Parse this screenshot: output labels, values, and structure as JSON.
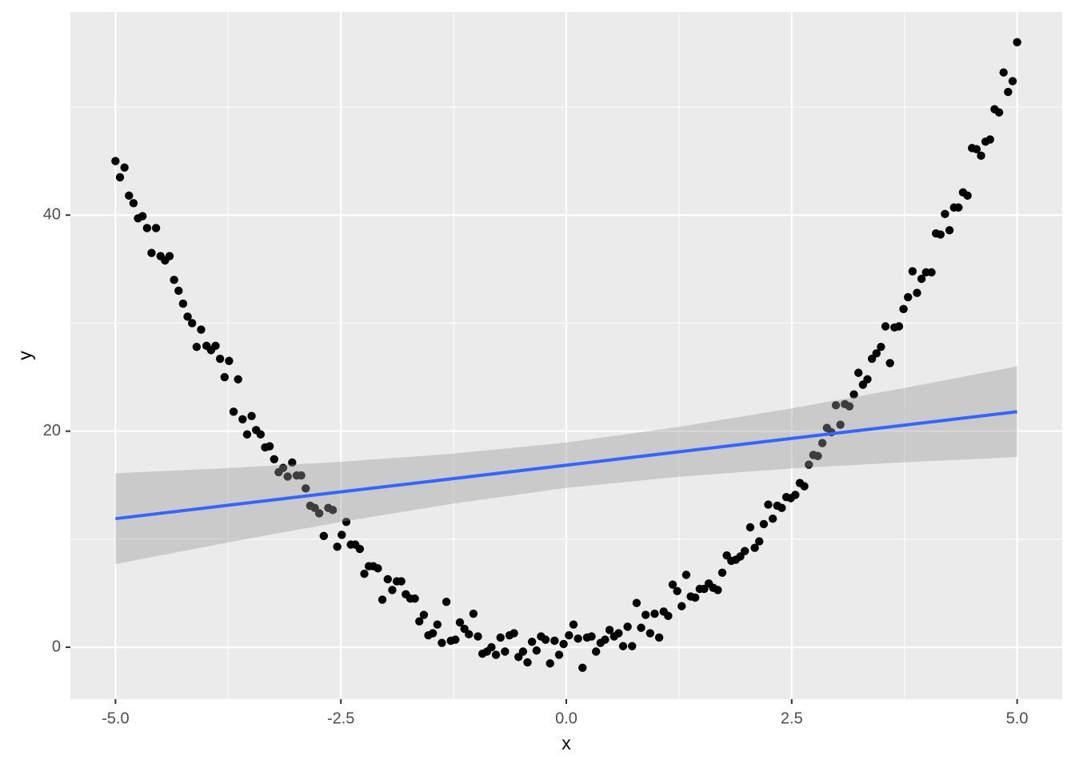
{
  "chart_data": {
    "type": "scatter",
    "x_label": "x",
    "y_label": "y",
    "color": "#000000",
    "panel_color": "#ebebeb",
    "grid": true,
    "xlim": [
      -5.5,
      5.5
    ],
    "ylim": [
      -4.8,
      58.8
    ],
    "xticks": [
      {
        "value": -5,
        "label": "-5.0"
      },
      {
        "value": -2.5,
        "label": "-2.5"
      },
      {
        "value": 0,
        "label": "0.0"
      },
      {
        "value": 2.5,
        "label": "2.5"
      },
      {
        "value": 5,
        "label": "5.0"
      }
    ],
    "yticks": [
      0,
      20,
      40
    ],
    "x": [
      -5.0,
      -4.95,
      -4.9,
      -4.85,
      -4.8,
      -4.75,
      -4.7,
      -4.65,
      -4.6,
      -4.55,
      -4.5,
      -4.45,
      -4.4,
      -4.35,
      -4.3,
      -4.25,
      -4.2,
      -4.15,
      -4.1,
      -4.05,
      -3.99,
      -3.94,
      -3.89,
      -3.84,
      -3.79,
      -3.74,
      -3.69,
      -3.64,
      -3.59,
      -3.54,
      -3.49,
      -3.44,
      -3.39,
      -3.34,
      -3.29,
      -3.24,
      -3.19,
      -3.14,
      -3.09,
      -3.04,
      -2.99,
      -2.94,
      -2.89,
      -2.84,
      -2.79,
      -2.74,
      -2.69,
      -2.64,
      -2.59,
      -2.54,
      -2.49,
      -2.44,
      -2.39,
      -2.34,
      -2.29,
      -2.24,
      -2.19,
      -2.14,
      -2.09,
      -2.04,
      -1.98,
      -1.93,
      -1.88,
      -1.83,
      -1.78,
      -1.73,
      -1.68,
      -1.63,
      -1.58,
      -1.53,
      -1.48,
      -1.43,
      -1.38,
      -1.33,
      -1.28,
      -1.23,
      -1.18,
      -1.13,
      -1.08,
      -1.03,
      -0.98,
      -0.93,
      -0.88,
      -0.83,
      -0.78,
      -0.73,
      -0.68,
      -0.63,
      -0.58,
      -0.53,
      -0.48,
      -0.43,
      -0.38,
      -0.33,
      -0.28,
      -0.23,
      -0.18,
      -0.13,
      -0.08,
      -0.03,
      0.03,
      0.08,
      0.13,
      0.18,
      0.23,
      0.28,
      0.33,
      0.38,
      0.43,
      0.48,
      0.53,
      0.58,
      0.63,
      0.68,
      0.73,
      0.78,
      0.83,
      0.88,
      0.93,
      0.98,
      1.03,
      1.08,
      1.13,
      1.18,
      1.23,
      1.28,
      1.33,
      1.38,
      1.43,
      1.48,
      1.53,
      1.58,
      1.63,
      1.68,
      1.73,
      1.78,
      1.83,
      1.88,
      1.93,
      1.98,
      2.04,
      2.09,
      2.14,
      2.19,
      2.24,
      2.29,
      2.34,
      2.39,
      2.44,
      2.49,
      2.54,
      2.59,
      2.64,
      2.69,
      2.74,
      2.79,
      2.84,
      2.89,
      2.94,
      2.99,
      3.04,
      3.09,
      3.14,
      3.19,
      3.24,
      3.29,
      3.34,
      3.39,
      3.44,
      3.49,
      3.54,
      3.59,
      3.64,
      3.69,
      3.74,
      3.79,
      3.84,
      3.89,
      3.94,
      3.99,
      4.05,
      4.1,
      4.15,
      4.2,
      4.25,
      4.3,
      4.35,
      4.4,
      4.45,
      4.5,
      4.55,
      4.6,
      4.65,
      4.7,
      4.75,
      4.8,
      4.85,
      4.9,
      4.95,
      5.0
    ],
    "values": [
      45.0,
      43.5,
      44.4,
      41.8,
      41.1,
      39.7,
      39.9,
      38.8,
      36.5,
      38.8,
      36.2,
      35.8,
      36.2,
      34.0,
      33.0,
      31.8,
      30.6,
      30.0,
      27.8,
      29.4,
      27.9,
      27.5,
      27.9,
      26.7,
      25.0,
      26.5,
      21.8,
      24.8,
      21.1,
      19.7,
      21.4,
      20.1,
      19.7,
      18.5,
      18.6,
      17.4,
      16.2,
      16.6,
      15.8,
      17.1,
      15.9,
      15.9,
      14.7,
      13.1,
      12.9,
      12.4,
      10.3,
      12.9,
      12.7,
      9.3,
      10.4,
      11.6,
      9.5,
      9.5,
      9.1,
      6.8,
      7.5,
      7.5,
      7.3,
      4.4,
      6.3,
      5.3,
      6.1,
      6.1,
      4.9,
      4.5,
      4.5,
      2.4,
      3.0,
      1.1,
      1.3,
      2.1,
      0.4,
      4.2,
      0.6,
      0.7,
      2.3,
      1.7,
      1.2,
      3.1,
      1.0,
      -0.6,
      -0.4,
      0.0,
      -0.7,
      0.9,
      -0.4,
      1.1,
      1.3,
      -0.9,
      -0.4,
      -1.4,
      0.5,
      -0.3,
      1.0,
      0.7,
      -1.5,
      0.6,
      -0.7,
      0.3,
      1.1,
      2.1,
      0.8,
      -1.9,
      0.9,
      1.0,
      -0.4,
      0.4,
      0.7,
      1.6,
      1.0,
      1.3,
      0.1,
      1.9,
      0.1,
      4.1,
      1.8,
      3.0,
      1.3,
      3.1,
      0.9,
      3.3,
      2.9,
      5.8,
      5.2,
      3.8,
      6.7,
      4.7,
      4.6,
      5.4,
      5.4,
      5.9,
      5.5,
      5.3,
      6.9,
      8.5,
      8.0,
      8.1,
      8.4,
      8.9,
      11.1,
      9.2,
      9.8,
      11.4,
      13.2,
      11.9,
      13.1,
      12.9,
      13.9,
      13.8,
      14.1,
      15.2,
      14.9,
      16.9,
      17.8,
      17.7,
      18.9,
      20.3,
      19.9,
      22.4,
      20.6,
      22.5,
      22.3,
      23.4,
      25.4,
      24.3,
      24.8,
      26.7,
      27.2,
      27.8,
      29.7,
      26.3,
      29.6,
      29.7,
      31.3,
      32.4,
      34.8,
      32.8,
      34.1,
      34.7,
      34.7,
      38.3,
      38.2,
      40.1,
      38.6,
      40.7,
      40.7,
      42.1,
      41.8,
      46.2,
      46.1,
      45.5,
      46.8,
      47.0,
      49.8,
      49.5,
      53.2,
      51.4,
      52.4,
      56.0
    ],
    "fit": {
      "color": "#3366ff",
      "band_color": "#999999",
      "x": [
        -5,
        -3.75,
        -2.5,
        -1.25,
        0,
        1.25,
        2.5,
        3.75,
        5
      ],
      "values": [
        11.9,
        13.14,
        14.38,
        15.61,
        16.85,
        18.09,
        19.33,
        20.56,
        21.8
      ],
      "lower": [
        7.7,
        9.7,
        11.6,
        13.3,
        14.75,
        15.78,
        16.55,
        17.12,
        17.6
      ],
      "upper": [
        16.1,
        16.58,
        17.16,
        17.92,
        18.95,
        20.4,
        22.11,
        24.0,
        26.0
      ]
    }
  }
}
